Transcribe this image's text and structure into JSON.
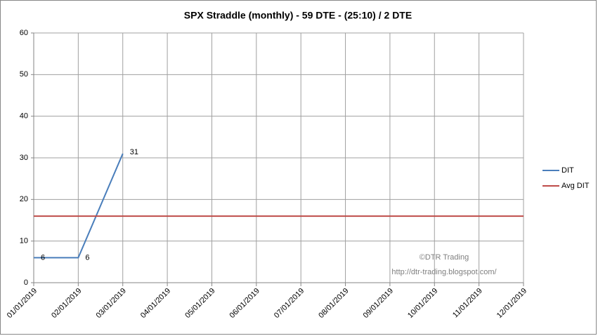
{
  "chart_data": {
    "type": "line",
    "title": "SPX Straddle (monthly) - 59 DTE -   (25:10) / 2 DTE",
    "categories": [
      "01/01/2019",
      "02/01/2019",
      "03/01/2019",
      "04/01/2019",
      "05/01/2019",
      "06/01/2019",
      "07/01/2019",
      "08/01/2019",
      "09/01/2019",
      "10/01/2019",
      "11/01/2019",
      "12/01/2019"
    ],
    "series": [
      {
        "name": "DIT",
        "color": "#4a7ebb",
        "values": [
          6,
          6,
          31,
          null,
          null,
          null,
          null,
          null,
          null,
          null,
          null,
          null
        ]
      },
      {
        "name": "Avg DIT",
        "color": "#be4b48",
        "values": [
          16,
          16,
          16,
          16,
          16,
          16,
          16,
          16,
          16,
          16,
          16,
          16
        ]
      }
    ],
    "data_labels_series": 0,
    "ylim": [
      0,
      60
    ],
    "yticks": [
      0,
      10,
      20,
      30,
      40,
      50,
      60
    ],
    "grid": true,
    "legend": "right",
    "annotations": [
      "©DTR Trading",
      "http://dtr-trading.blogspot.com/"
    ]
  }
}
